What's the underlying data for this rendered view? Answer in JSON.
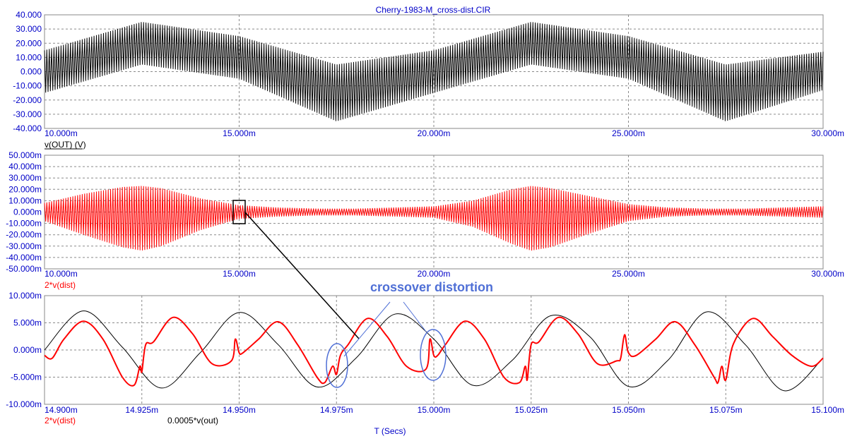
{
  "window_title": "Cherry-1983-M_cross-dist.CIR",
  "x_axis_title": "T (Secs)",
  "annotation": "crossover distortion",
  "colors": {
    "trace_black": "#000000",
    "trace_red": "#ff0000",
    "axis_text": "#0000c8",
    "annotation": "#4f6fd6",
    "grid": "#8a8a8a"
  },
  "chart_data": [
    {
      "type": "line",
      "title": "Cherry-1983-M_cross-dist.CIR",
      "xlim": [
        10.0,
        30.0
      ],
      "ylim": [
        -40,
        40
      ],
      "x_ticks": [
        "10.000m",
        "15.000m",
        "20.000m",
        "25.000m",
        "30.000m"
      ],
      "y_ticks": [
        "40.000",
        "30.000",
        "20.000",
        "10.000",
        "0.000",
        "-10.000",
        "-20.000",
        "-30.000",
        "-40.000"
      ],
      "grid": true,
      "series": [
        {
          "name": "v(OUT) (V)",
          "color": "#000000",
          "description_of_shape": "amplitude-modulated carrier, envelope offset",
          "x": [
            10.0,
            12.5,
            15.0,
            17.5,
            20.0,
            22.5,
            25.0,
            27.5,
            30.0
          ],
          "envelope_max": [
            15,
            35,
            25,
            5,
            15,
            35,
            25,
            5,
            14
          ],
          "envelope_min": [
            -15,
            5,
            -5,
            -35,
            -15,
            5,
            -5,
            -35,
            -13
          ]
        }
      ]
    },
    {
      "type": "line",
      "xlim": [
        10.0,
        30.0
      ],
      "ylim": [
        -50,
        50
      ],
      "x_ticks": [
        "10.000m",
        "15.000m",
        "20.000m",
        "25.000m",
        "30.000m"
      ],
      "y_ticks": [
        "50.000m",
        "40.000m",
        "30.000m",
        "20.000m",
        "10.000m",
        "0.000m",
        "-10.000m",
        "-20.000m",
        "-30.000m",
        "-40.000m",
        "-50.000m"
      ],
      "grid": true,
      "series": [
        {
          "name": "2*v(dist)",
          "color": "#ff0000",
          "x": [
            10.0,
            11.0,
            12.0,
            12.5,
            13.0,
            14.0,
            15.0,
            16.0,
            17.0,
            18.0,
            19.0,
            20.0,
            21.0,
            22.0,
            22.5,
            23.0,
            24.0,
            25.0,
            26.0,
            27.0,
            28.0,
            29.0,
            30.0
          ],
          "envelope_max": [
            8,
            16,
            22,
            23,
            21,
            12,
            6,
            4,
            3,
            3,
            4,
            5,
            10,
            20,
            23,
            21,
            14,
            7,
            4,
            3,
            3,
            4,
            5
          ],
          "envelope_min": [
            -8,
            -20,
            -31,
            -34,
            -30,
            -16,
            -6,
            -4,
            -3,
            -3,
            -4,
            -5,
            -13,
            -28,
            -34,
            -31,
            -19,
            -8,
            -4,
            -3,
            -3,
            -4,
            -5
          ]
        }
      ]
    },
    {
      "type": "line",
      "xlim": [
        14.9,
        15.1
      ],
      "ylim": [
        -10,
        10
      ],
      "x_ticks": [
        "14.900m",
        "14.925m",
        "14.950m",
        "14.975m",
        "15.000m",
        "15.025m",
        "15.050m",
        "15.075m",
        "15.100m"
      ],
      "y_ticks": [
        "10.000m",
        "5.000m",
        "0.000m",
        "-5.000m",
        "-10.000m"
      ],
      "grid": true,
      "series": [
        {
          "name": "2*v(dist)",
          "color": "#ff0000",
          "x": [
            14.9,
            14.902,
            14.905,
            14.91,
            14.915,
            14.92,
            14.923,
            14.9245,
            14.925,
            14.926,
            14.928,
            14.933,
            14.938,
            14.943,
            14.948,
            14.949,
            14.95,
            14.951,
            14.955,
            14.96,
            14.965,
            14.97,
            14.972,
            14.974,
            14.975,
            14.976,
            14.978,
            14.983,
            14.988,
            14.993,
            14.998,
            14.999,
            15.0,
            15.001,
            15.003,
            15.008,
            15.013,
            15.018,
            15.022,
            15.0235,
            15.024,
            15.025,
            15.027,
            15.032,
            15.037,
            15.042,
            15.047,
            15.048,
            15.049,
            15.05,
            15.052,
            15.057,
            15.062,
            15.067,
            15.072,
            15.073,
            15.074,
            15.075,
            15.077,
            15.082,
            15.087,
            15.092,
            15.097,
            15.1
          ],
          "y": [
            -1,
            -1.5,
            2,
            5.3,
            2,
            -5,
            -6.5,
            -3,
            -4,
            1,
            1.5,
            6,
            3,
            -2.5,
            -2,
            2,
            -0.5,
            -0.5,
            2,
            5.2,
            1,
            -5,
            -6,
            -3,
            -4.5,
            -1,
            1,
            5.8,
            2.5,
            -3,
            -3.5,
            2,
            -1,
            -1,
            1,
            5.3,
            2,
            -5,
            -6,
            -3,
            -5.5,
            1,
            1.5,
            6,
            3,
            -2.5,
            -2,
            -1.5,
            2.8,
            -0.5,
            -1,
            2,
            5.2,
            1,
            -5,
            -6,
            -3,
            -5.5,
            1.2,
            5.8,
            2.5,
            -1,
            -3,
            -1.5
          ]
        },
        {
          "name": "0.0005*v(out)",
          "color": "#000000",
          "x": [
            14.9,
            14.91,
            14.92,
            14.93,
            14.94,
            14.95,
            14.96,
            14.97,
            14.98,
            14.99,
            15.0,
            15.01,
            15.02,
            15.03,
            15.04,
            15.05,
            15.06,
            15.07,
            15.08,
            15.09,
            15.1
          ],
          "y": [
            0,
            7.2,
            0.5,
            -7,
            -0.5,
            6.9,
            1,
            -6.8,
            -1.5,
            6.6,
            2,
            -6.5,
            -2,
            6.3,
            2.5,
            -6.7,
            -2,
            7,
            1,
            -7.5,
            -1.5
          ]
        }
      ],
      "annotations": [
        "crossover distortion"
      ]
    }
  ]
}
